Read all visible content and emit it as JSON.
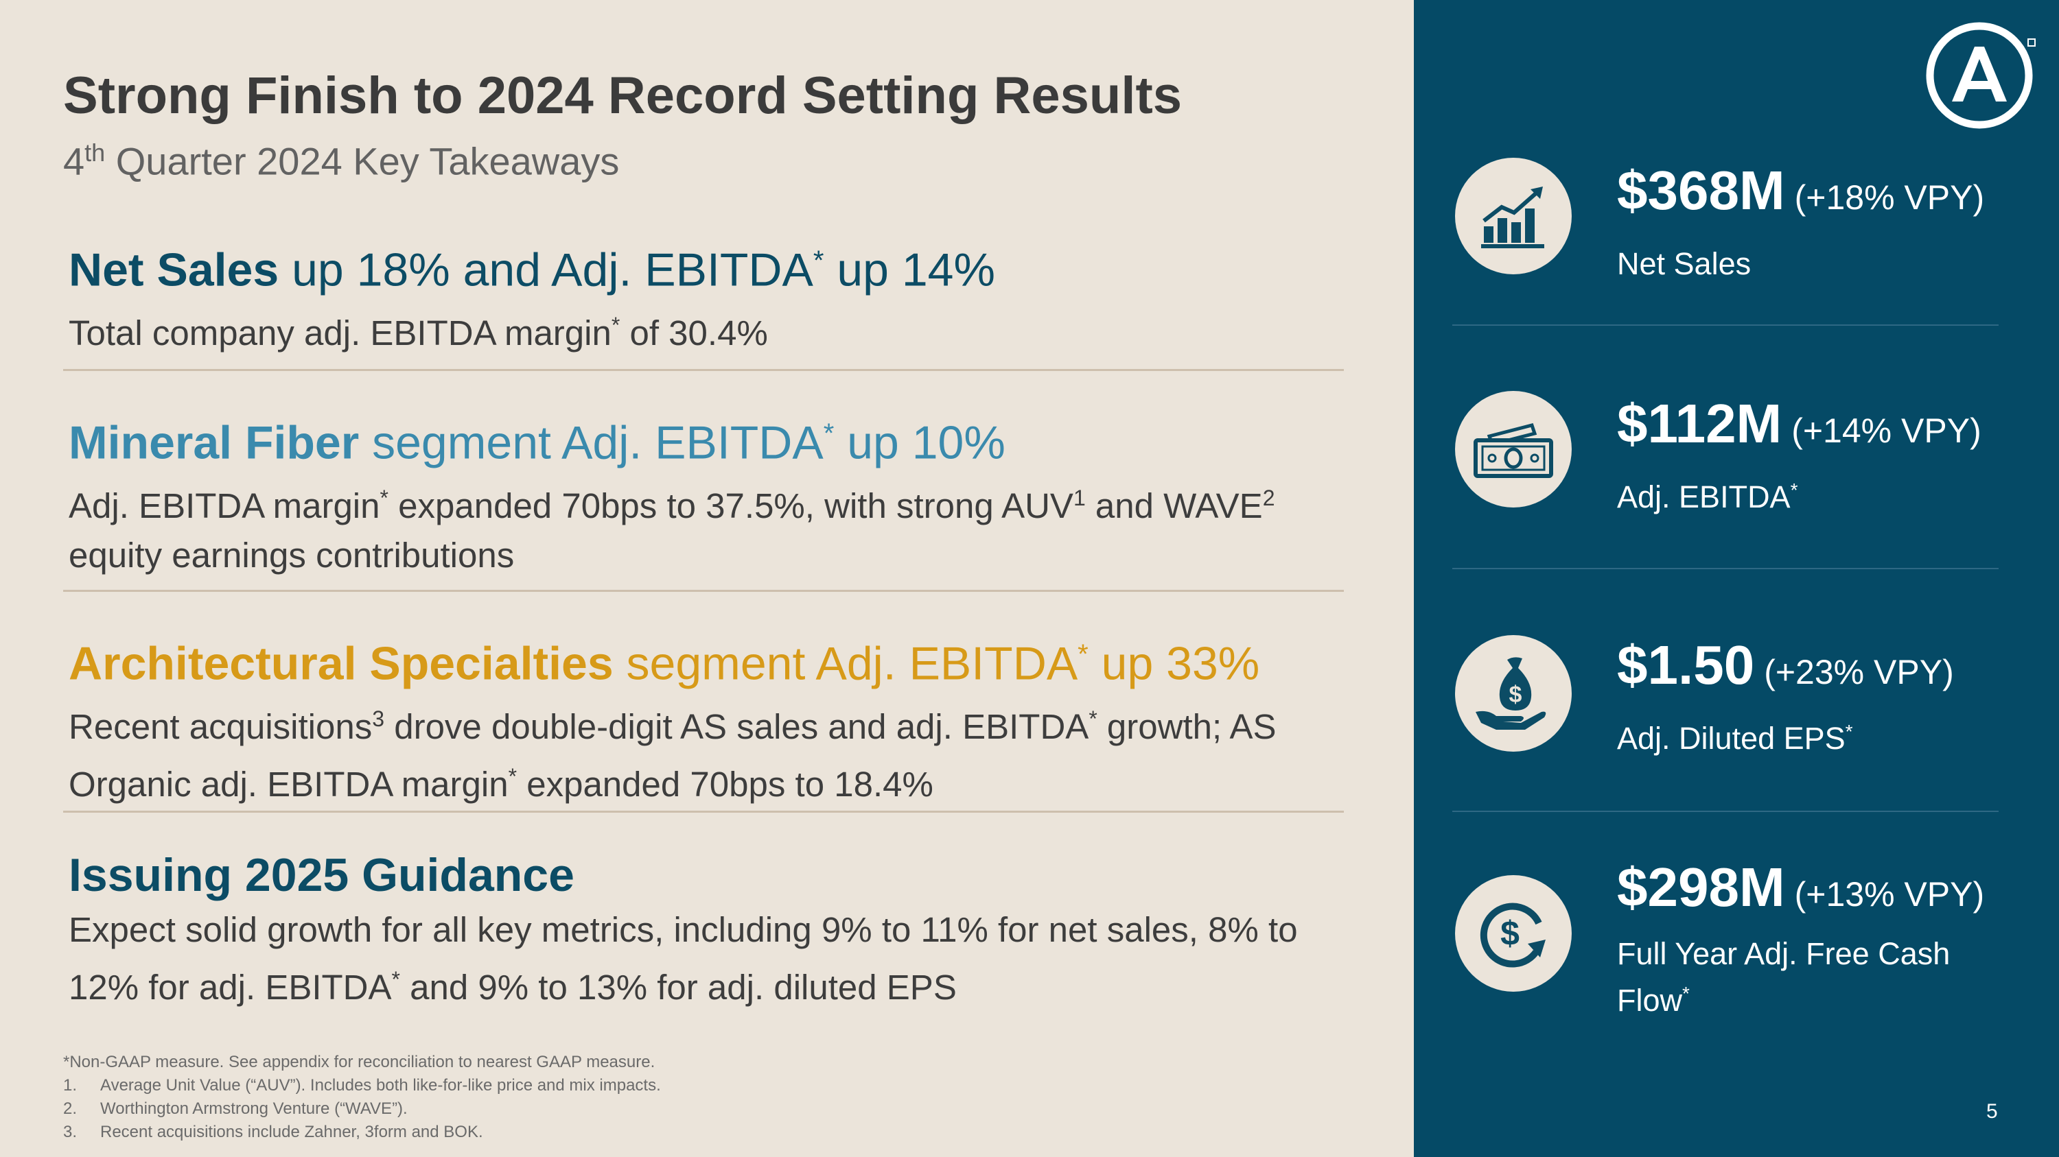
{
  "header": {
    "title": "Strong Finish to 2024 Record Setting Results",
    "subtitle_num": "4",
    "subtitle_sup": "th",
    "subtitle_rest": " Quarter 2024 Key Takeaways"
  },
  "sections": [
    {
      "head_bold": "Net Sales",
      "head_a": " up 18% and Adj. EBITDA",
      "head_sup": "*",
      "head_b": " up 14%",
      "body_a": "Total company adj. EBITDA margin",
      "body_sup": "*",
      "body_b": " of 30.4%"
    },
    {
      "head_bold": "Mineral Fiber",
      "head_a": " segment Adj. EBITDA",
      "head_sup": "*",
      "head_b": " up 10%",
      "body_a": "Adj. EBITDA margin",
      "body_sup1": "*",
      "body_b": " expanded 70bps to 37.5%, with strong AUV",
      "body_sup2": "1",
      "body_c": " and WAVE",
      "body_sup3": "2",
      "body_d": " equity earnings contributions"
    },
    {
      "head_bold": "Architectural Specialties",
      "head_a": " segment Adj. EBITDA",
      "head_sup": "*",
      "head_b": " up 33%",
      "body_a": "Recent acquisitions",
      "body_sup1": "3",
      "body_b": " drove double-digit AS sales and adj. EBITDA",
      "body_sup2": "*",
      "body_c": " growth; AS Organic adj. EBITDA margin",
      "body_sup3": "*",
      "body_d": " expanded 70bps to 18.4%"
    },
    {
      "head_bold": "Issuing 2025 Guidance",
      "body_a": "Expect solid growth for all key metrics, including 9% to 11% for net sales, 8% to 12% for adj. EBITDA",
      "body_sup": "*",
      "body_b": " and 9% to 13% for adj. diluted EPS"
    }
  ],
  "footnotes": {
    "note": "*Non-GAAP measure. See appendix for reconciliation to nearest GAAP measure.",
    "items": [
      {
        "num": "1.",
        "text": "Average Unit Value (“AUV”). Includes both like-for-like price and mix impacts."
      },
      {
        "num": "2.",
        "text": "Worthington Armstrong Venture (“WAVE”)."
      },
      {
        "num": "3.",
        "text": "Recent acquisitions include Zahner, 3form and BOK."
      }
    ]
  },
  "metrics": [
    {
      "value": "$368M",
      "change": "(+18% VPY)",
      "label": "Net Sales",
      "label_sup": "",
      "icon": "growth-chart-icon"
    },
    {
      "value": "$112M",
      "change": "(+14% VPY)",
      "label": "Adj. EBITDA",
      "label_sup": "*",
      "icon": "cash-bills-icon"
    },
    {
      "value": "$1.50",
      "change": "(+23% VPY)",
      "label": "Adj. Diluted EPS",
      "label_sup": "*",
      "icon": "money-bag-hand-icon"
    },
    {
      "value": "$298M",
      "change": "(+13% VPY)",
      "label": "Full Year Adj. Free Cash Flow",
      "label_sup": "*",
      "icon": "cash-flow-cycle-icon"
    }
  ],
  "page_number": "5",
  "colors": {
    "background": "#ebe4da",
    "panel": "#054a66",
    "navy": "#0c4c65",
    "teal": "#3a8aad",
    "gold": "#d79a18",
    "text": "#3d3d3d"
  }
}
